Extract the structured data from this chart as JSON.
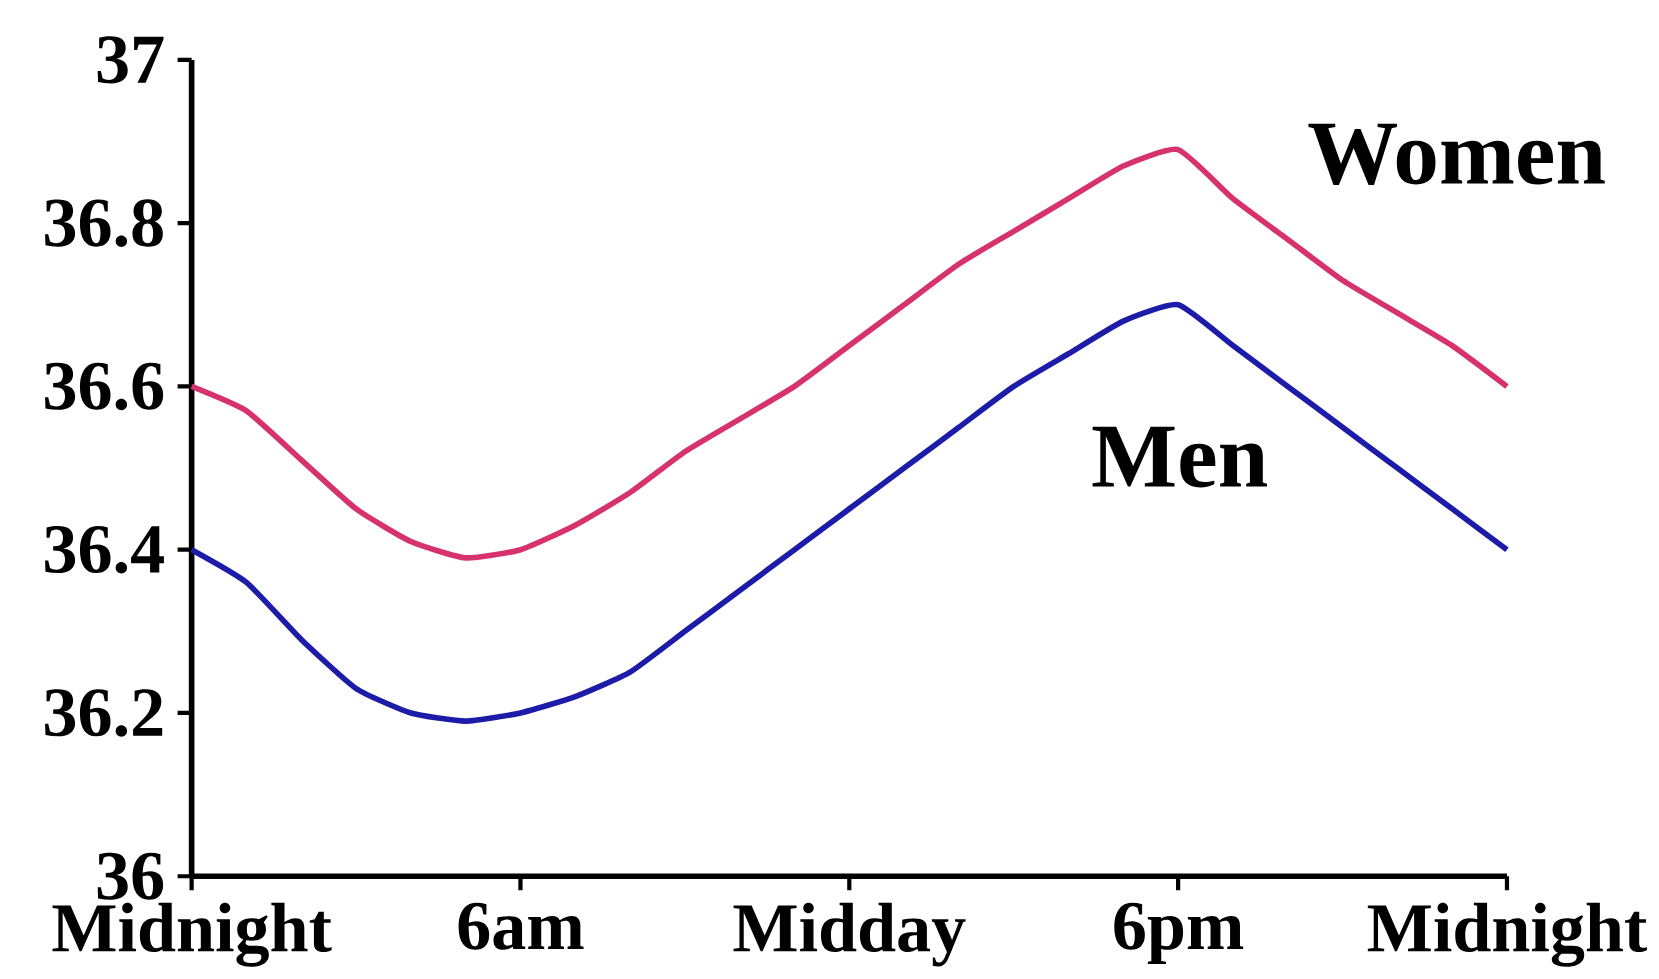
{
  "chart_data": {
    "type": "line",
    "categories": [
      "Midnight",
      null,
      null,
      null,
      null,
      null,
      "6am",
      null,
      null,
      null,
      null,
      null,
      "Midday",
      null,
      null,
      null,
      null,
      null,
      "6pm",
      null,
      null,
      null,
      null,
      null,
      "Midnight"
    ],
    "series": [
      {
        "name": "Women",
        "color": "#d6336c",
        "values": [
          36.6,
          36.57,
          36.51,
          36.45,
          36.41,
          36.39,
          36.4,
          36.43,
          36.47,
          36.52,
          36.56,
          36.6,
          36.65,
          36.7,
          36.75,
          36.79,
          36.83,
          36.87,
          36.89,
          36.83,
          36.78,
          36.73,
          36.69,
          36.65,
          36.6
        ]
      },
      {
        "name": "Men",
        "color": "#1c1ca8",
        "values": [
          36.4,
          36.36,
          36.29,
          36.23,
          36.2,
          36.19,
          36.2,
          36.22,
          36.25,
          36.3,
          36.35,
          36.4,
          36.45,
          36.5,
          36.55,
          36.6,
          36.64,
          36.68,
          36.7,
          36.65,
          36.6,
          36.55,
          36.5,
          36.45,
          36.4
        ]
      }
    ],
    "ylim": [
      36,
      37
    ],
    "yticks": [
      36,
      36.2,
      36.4,
      36.6,
      36.8,
      37
    ],
    "grid": false,
    "legend": false,
    "marker": "none",
    "line_style": "solid"
  }
}
